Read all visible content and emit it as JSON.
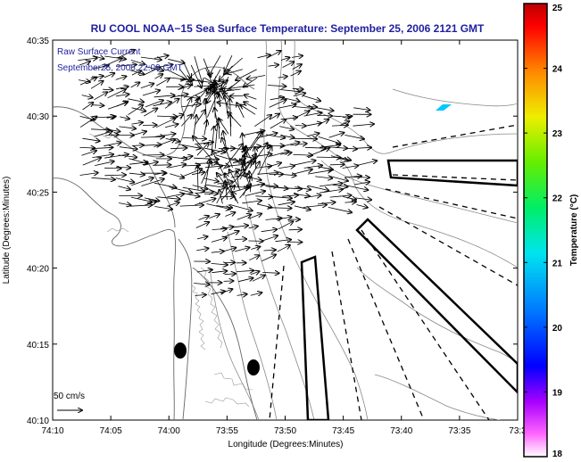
{
  "title": "RU COOL  NOAA−15  Sea Surface Temperature:  September 25, 2006 2121 GMT",
  "overlay": {
    "line1": "Raw Surface Current",
    "line2": "September25, 2006 22:00 GMT"
  },
  "scale_label": "50 cm/s",
  "xaxis": {
    "label": "Longitude (Degrees:Minutes)",
    "ticks": [
      "74:10",
      "74:05",
      "74:00",
      "73:55",
      "73:50",
      "73:45",
      "73:40",
      "73:35",
      "73:3"
    ]
  },
  "yaxis": {
    "label": "Latitude (Degrees:Minutes)",
    "ticks": [
      "40:35",
      "40:30",
      "40:25",
      "40:20",
      "40:15",
      "40:10"
    ]
  },
  "colorbar": {
    "label": "Temperature (°C)",
    "ticks": [
      "25",
      "24",
      "23",
      "22",
      "21",
      "20",
      "19",
      "18"
    ],
    "min": 18,
    "max": 25
  },
  "colors": {
    "title": "#1f1fa0",
    "overlay_text": "#1f1fa0",
    "sst_patch": "#00c8ff"
  }
}
